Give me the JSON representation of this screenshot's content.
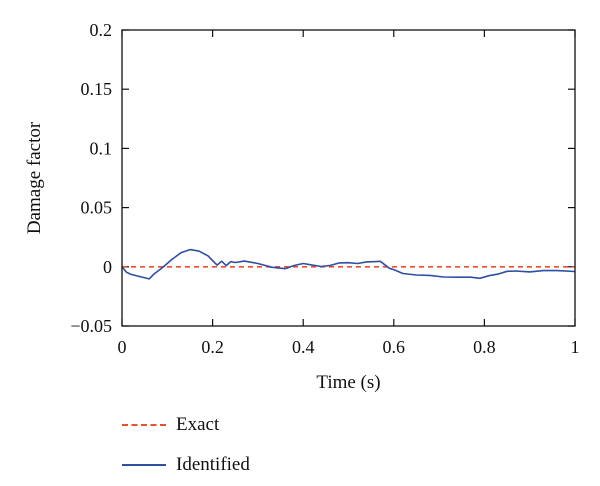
{
  "chart_data": {
    "type": "line",
    "xlabel": "Time (s)",
    "ylabel": "Damage factor",
    "xlim": [
      0,
      1
    ],
    "ylim": [
      -0.05,
      0.2
    ],
    "xticks": [
      0,
      0.2,
      0.4,
      0.6,
      0.8,
      1
    ],
    "xtick_labels": [
      "0",
      "0.2",
      "0.4",
      "0.6",
      "0.8",
      "1"
    ],
    "yticks": [
      -0.05,
      0,
      0.05,
      0.1,
      0.15,
      0.2
    ],
    "ytick_labels": [
      "−0.05",
      "0",
      "0.05",
      "0.1",
      "0.15",
      "0.2"
    ],
    "grid": false,
    "legend_position": "bottom-left, below plot",
    "series": [
      {
        "name": "Exact",
        "color": "#e8502a",
        "style": "dashed",
        "x": [
          0,
          1
        ],
        "y": [
          0,
          0
        ]
      },
      {
        "name": "Identified",
        "color": "#2f4fa2",
        "style": "solid",
        "x": [
          0,
          0.01,
          0.02,
          0.04,
          0.06,
          0.07,
          0.09,
          0.11,
          0.13,
          0.15,
          0.17,
          0.19,
          0.2,
          0.21,
          0.22,
          0.23,
          0.24,
          0.25,
          0.27,
          0.3,
          0.33,
          0.36,
          0.38,
          0.4,
          0.42,
          0.44,
          0.46,
          0.48,
          0.5,
          0.52,
          0.54,
          0.56,
          0.57,
          0.58,
          0.59,
          0.6,
          0.62,
          0.65,
          0.68,
          0.71,
          0.74,
          0.77,
          0.79,
          0.81,
          0.83,
          0.85,
          0.87,
          0.9,
          0.93,
          0.96,
          1.0
        ],
        "y": [
          0.0,
          -0.005,
          -0.007,
          -0.009,
          -0.011,
          -0.007,
          -0.001,
          0.006,
          0.012,
          0.015,
          0.014,
          0.01,
          0.006,
          0.002,
          0.005,
          0.001,
          0.004,
          0.003,
          0.004,
          0.002,
          -0.001,
          -0.002,
          0.001,
          0.003,
          0.002,
          0.001,
          0.002,
          0.004,
          0.004,
          0.003,
          0.004,
          0.004,
          0.004,
          0.001,
          -0.002,
          -0.003,
          -0.006,
          -0.007,
          -0.007,
          -0.008,
          -0.008,
          -0.008,
          -0.009,
          -0.007,
          -0.006,
          -0.004,
          -0.004,
          -0.005,
          -0.004,
          -0.004,
          -0.004
        ]
      }
    ]
  }
}
